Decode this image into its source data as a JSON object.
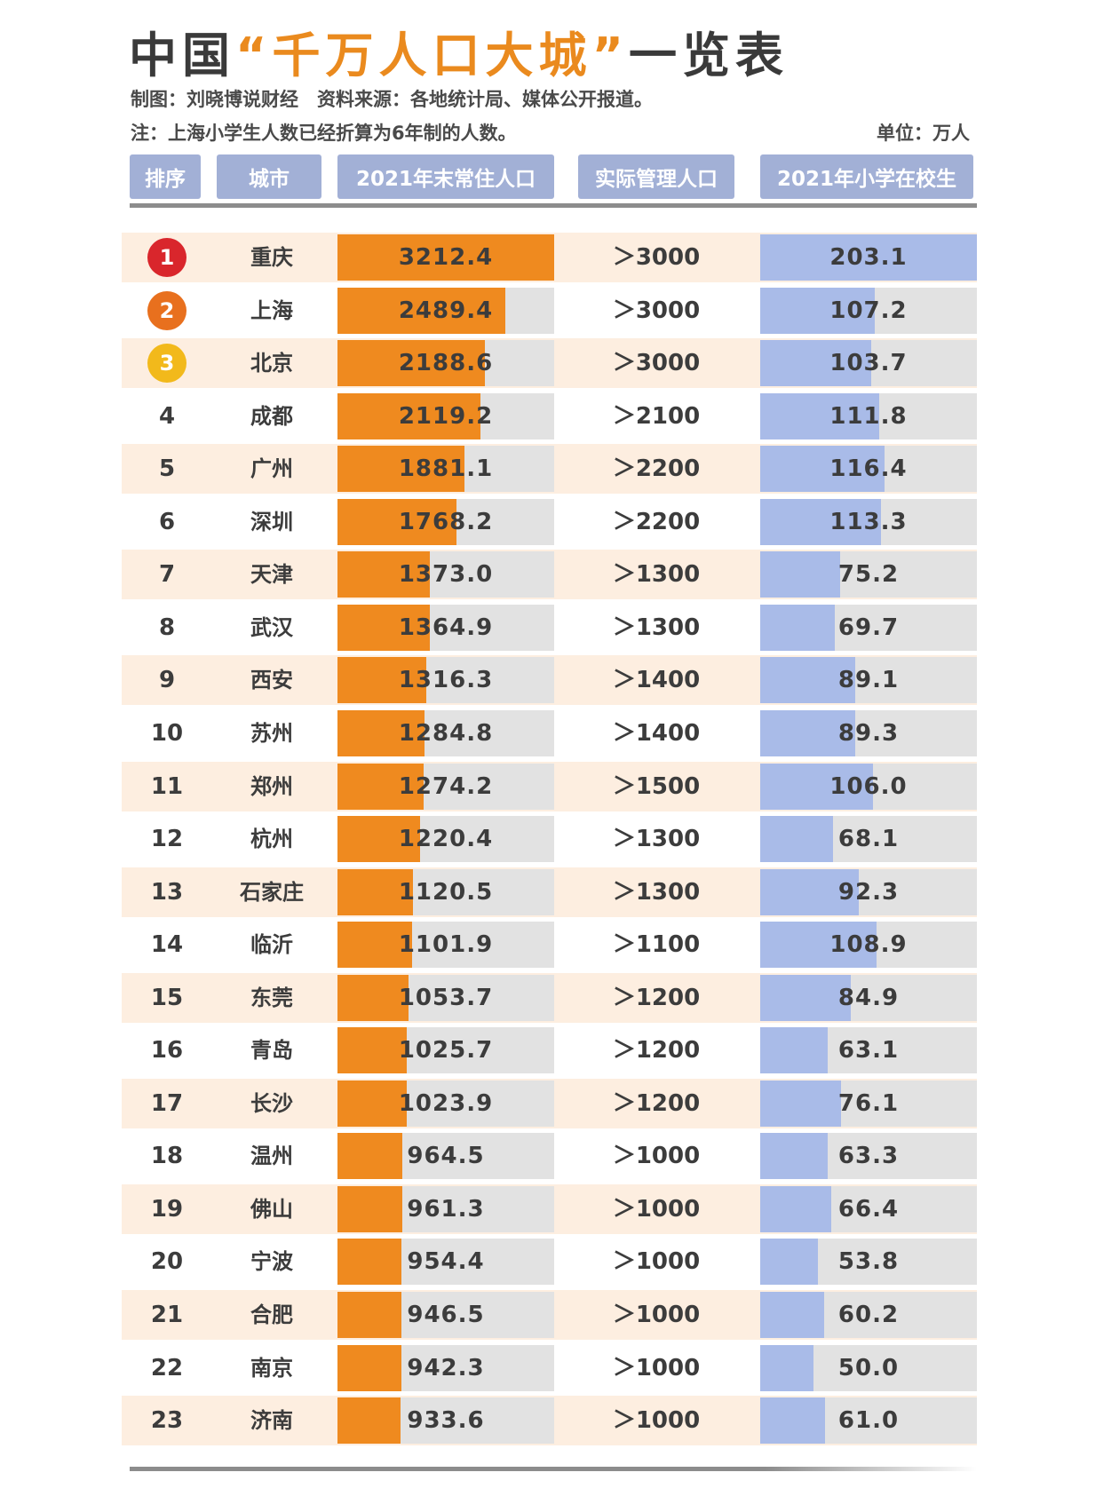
{
  "title": {
    "prefix": "中国",
    "accent": "“千万人口大城”",
    "suffix": "一览表"
  },
  "credit": "制图：刘晓博说财经　资料来源：各地统计局、媒体公开报道。",
  "note": "注：上海小学生人数已经折算为6年制的人数。",
  "unit": "单位：万人",
  "headers": {
    "rank": "排序",
    "city": "城市",
    "population": "2021年末常住人口",
    "managed": "实际管理人口",
    "students": "2021年小学在校生"
  },
  "colors": {
    "population_bar": "#ef8a1f",
    "students_bar": "#a9bbe8",
    "track": "#e2e2e2",
    "header_bg": "#a2b0d6",
    "row_tint": "#fdeee0",
    "medal_1": "#d9262c",
    "medal_2": "#e8701e",
    "medal_3": "#f2b91b"
  },
  "chart_data": {
    "type": "table",
    "population_max": 3212.4,
    "students_max": 203.1,
    "rows": [
      {
        "rank": "1",
        "city": "重庆",
        "population": 3212.4,
        "managed": "＞3000",
        "students": 203.1
      },
      {
        "rank": "2",
        "city": "上海",
        "population": 2489.4,
        "managed": "＞3000",
        "students": 107.2
      },
      {
        "rank": "3",
        "city": "北京",
        "population": 2188.6,
        "managed": "＞3000",
        "students": 103.7
      },
      {
        "rank": "4",
        "city": "成都",
        "population": 2119.2,
        "managed": "＞2100",
        "students": 111.8
      },
      {
        "rank": "5",
        "city": "广州",
        "population": 1881.1,
        "managed": "＞2200",
        "students": 116.4
      },
      {
        "rank": "6",
        "city": "深圳",
        "population": 1768.2,
        "managed": "＞2200",
        "students": 113.3
      },
      {
        "rank": "7",
        "city": "天津",
        "population": 1373.0,
        "managed": "＞1300",
        "students": 75.2
      },
      {
        "rank": "8",
        "city": "武汉",
        "population": 1364.9,
        "managed": "＞1300",
        "students": 69.7
      },
      {
        "rank": "9",
        "city": "西安",
        "population": 1316.3,
        "managed": "＞1400",
        "students": 89.1
      },
      {
        "rank": "10",
        "city": "苏州",
        "population": 1284.8,
        "managed": "＞1400",
        "students": 89.3
      },
      {
        "rank": "11",
        "city": "郑州",
        "population": 1274.2,
        "managed": "＞1500",
        "students": 106.0
      },
      {
        "rank": "12",
        "city": "杭州",
        "population": 1220.4,
        "managed": "＞1300",
        "students": 68.1
      },
      {
        "rank": "13",
        "city": "石家庄",
        "population": 1120.5,
        "managed": "＞1300",
        "students": 92.3
      },
      {
        "rank": "14",
        "city": "临沂",
        "population": 1101.9,
        "managed": "＞1100",
        "students": 108.9
      },
      {
        "rank": "15",
        "city": "东莞",
        "population": 1053.7,
        "managed": "＞1200",
        "students": 84.9
      },
      {
        "rank": "16",
        "city": "青岛",
        "population": 1025.7,
        "managed": "＞1200",
        "students": 63.1
      },
      {
        "rank": "17",
        "city": "长沙",
        "population": 1023.9,
        "managed": "＞1200",
        "students": 76.1
      },
      {
        "rank": "18",
        "city": "温州",
        "population": 964.5,
        "managed": "＞1000",
        "students": 63.3
      },
      {
        "rank": "19",
        "city": "佛山",
        "population": 961.3,
        "managed": "＞1000",
        "students": 66.4
      },
      {
        "rank": "20",
        "city": "宁波",
        "population": 954.4,
        "managed": "＞1000",
        "students": 53.8
      },
      {
        "rank": "21",
        "city": "合肥",
        "population": 946.5,
        "managed": "＞1000",
        "students": 60.2
      },
      {
        "rank": "22",
        "city": "南京",
        "population": 942.3,
        "managed": "＞1000",
        "students": 50.0
      },
      {
        "rank": "23",
        "city": "济南",
        "population": 933.6,
        "managed": "＞1000",
        "students": 61.0
      }
    ]
  }
}
